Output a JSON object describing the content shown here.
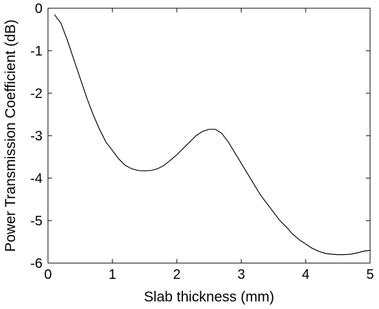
{
  "chart_data": {
    "type": "line",
    "title": "",
    "xlabel": "Slab thickness (mm)",
    "ylabel": "Power Transmission Coefficient (dB)",
    "xlim": [
      0,
      5
    ],
    "ylim": [
      -6,
      0
    ],
    "xticks": [
      0,
      1,
      2,
      3,
      4,
      5
    ],
    "yticks": [
      0,
      -1,
      -2,
      -3,
      -4,
      -5,
      -6
    ],
    "xtick_labels": [
      "0",
      "1",
      "2",
      "3",
      "4",
      "5"
    ],
    "ytick_labels": [
      "0",
      "-1",
      "-2",
      "-3",
      "-4",
      "-5",
      "-6"
    ],
    "grid": false,
    "legend": "none",
    "line_color": "#000000",
    "series": [
      {
        "x": [
          0.1,
          0.2,
          0.3,
          0.4,
          0.5,
          0.6,
          0.7,
          0.8,
          0.9,
          1.0,
          1.1,
          1.2,
          1.3,
          1.4,
          1.5,
          1.6,
          1.7,
          1.8,
          1.9,
          2.0,
          2.1,
          2.2,
          2.3,
          2.4,
          2.5,
          2.6,
          2.7,
          2.8,
          2.9,
          3.0,
          3.1,
          3.2,
          3.3,
          3.4,
          3.5,
          3.6,
          3.7,
          3.8,
          3.9,
          4.0,
          4.1,
          4.2,
          4.3,
          4.4,
          4.5,
          4.6,
          4.7,
          4.8,
          4.9,
          5.0
        ],
        "y": [
          -0.15,
          -0.35,
          -0.75,
          -1.2,
          -1.65,
          -2.1,
          -2.5,
          -2.85,
          -3.15,
          -3.35,
          -3.55,
          -3.7,
          -3.78,
          -3.82,
          -3.83,
          -3.82,
          -3.78,
          -3.7,
          -3.58,
          -3.45,
          -3.3,
          -3.15,
          -3.0,
          -2.9,
          -2.85,
          -2.85,
          -2.95,
          -3.15,
          -3.4,
          -3.65,
          -3.9,
          -4.15,
          -4.4,
          -4.6,
          -4.8,
          -5.0,
          -5.15,
          -5.32,
          -5.45,
          -5.55,
          -5.65,
          -5.72,
          -5.77,
          -5.79,
          -5.8,
          -5.8,
          -5.79,
          -5.76,
          -5.72,
          -5.7
        ]
      }
    ]
  }
}
